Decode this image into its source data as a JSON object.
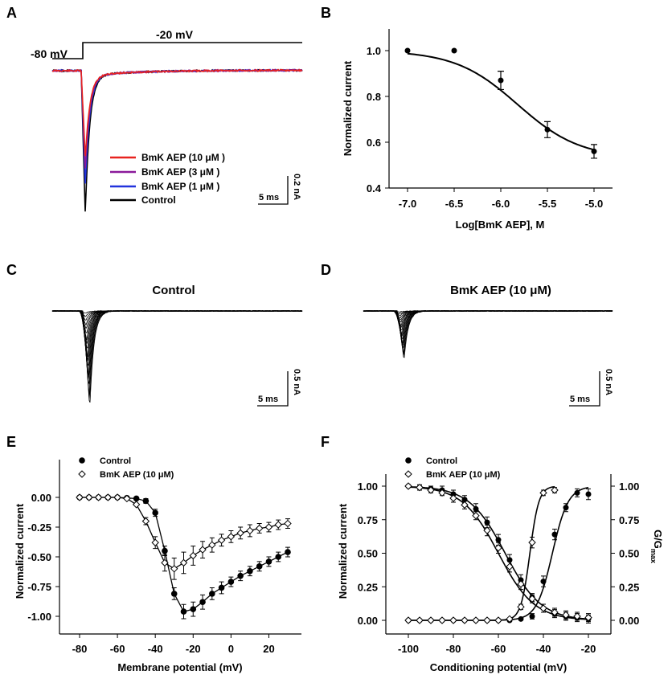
{
  "panels": [
    {
      "label": "A"
    },
    {
      "label": "B"
    },
    {
      "label": "C"
    },
    {
      "label": "D"
    },
    {
      "label": "E"
    },
    {
      "label": "F"
    }
  ],
  "colors": {
    "control": "#000000",
    "aep10": "#e8231f",
    "aep3": "#8b1a9a",
    "aep1": "#2233dd"
  },
  "chart_data": [
    {
      "panel": "A",
      "type": "line",
      "protocol": {
        "holding_label": "-80 mV",
        "step_label": "-20 mV"
      },
      "series": [
        {
          "name": "BmK AEP (10 μM )",
          "color": "#e8231f",
          "relative_peak": 0.6
        },
        {
          "name": "BmK AEP (3 μM )",
          "color": "#8b1a9a",
          "relative_peak": 0.69
        },
        {
          "name": "BmK AEP (1 μM )",
          "color": "#2233dd",
          "relative_peak": 0.8
        },
        {
          "name": "Control",
          "color": "#000000",
          "relative_peak": 1.0
        }
      ],
      "scalebar": {
        "time": "5 ms",
        "current": "0.2 nA"
      }
    },
    {
      "panel": "B",
      "type": "scatter",
      "xlabel": "Log[BmK AEP], M",
      "ylabel": "Normalized current",
      "xlim": [
        -7.0,
        -5.0
      ],
      "ylim": [
        0.4,
        1.0
      ],
      "xticks": [
        "-7.0",
        "-6.5",
        "-6.0",
        "-5.5",
        "-5.0"
      ],
      "yticks": [
        "0.4",
        "0.6",
        "0.8",
        "1.0"
      ],
      "x": [
        -7.0,
        -6.5,
        -6.0,
        -5.5,
        -5.0
      ],
      "y": [
        1.0,
        1.0,
        0.87,
        0.655,
        0.56
      ],
      "err": [
        0.0,
        0.0,
        0.04,
        0.035,
        0.03
      ],
      "fit": {
        "bottom": 0.53,
        "top": 1.0,
        "logIC50": -5.82,
        "hill": 1.3
      }
    },
    {
      "panel": "C",
      "type": "line",
      "title": "Control",
      "scalebar": {
        "time": "5 ms",
        "current": "0.5 nA"
      }
    },
    {
      "panel": "D",
      "type": "line",
      "title": "BmK AEP (10 μM)",
      "scalebar": {
        "time": "5 ms",
        "current": "0.5 nA"
      }
    },
    {
      "panel": "E",
      "type": "scatter",
      "xlabel": "Membrane potential (mV)",
      "ylabel": "Normalized current",
      "xlim": [
        -85,
        32
      ],
      "ylim": [
        -1.12,
        0.18
      ],
      "xticks": [
        "-80",
        "-60",
        "-40",
        "-20",
        "0",
        "20"
      ],
      "yticks": [
        "0.00",
        "-0.25",
        "-0.50",
        "-0.75",
        "-1.00"
      ],
      "x": [
        -80,
        -75,
        -70,
        -65,
        -60,
        -55,
        -50,
        -45,
        -40,
        -35,
        -30,
        -25,
        -20,
        -15,
        -10,
        -5,
        0,
        5,
        10,
        15,
        20,
        25,
        30
      ],
      "series": [
        {
          "name": "Control",
          "marker": "filled-circle",
          "values": [
            0,
            0,
            0,
            0,
            0,
            -0.005,
            -0.01,
            -0.03,
            -0.13,
            -0.45,
            -0.81,
            -0.96,
            -0.94,
            -0.88,
            -0.81,
            -0.76,
            -0.71,
            -0.66,
            -0.62,
            -0.58,
            -0.54,
            -0.5,
            -0.46
          ],
          "err": [
            0,
            0,
            0,
            0,
            0,
            0,
            0.01,
            0.02,
            0.03,
            0.04,
            0.05,
            0.06,
            0.06,
            0.06,
            0.05,
            0.05,
            0.04,
            0.04,
            0.04,
            0.04,
            0.04,
            0.04,
            0.04
          ]
        },
        {
          "name": "BmK AEP (10 μM)",
          "marker": "open-diamond",
          "values": [
            0,
            0,
            0,
            0,
            0,
            -0.01,
            -0.06,
            -0.2,
            -0.38,
            -0.55,
            -0.6,
            -0.55,
            -0.49,
            -0.44,
            -0.4,
            -0.36,
            -0.33,
            -0.3,
            -0.28,
            -0.26,
            -0.25,
            -0.23,
            -0.22
          ],
          "err": [
            0,
            0,
            0,
            0,
            0,
            0.005,
            0.01,
            0.03,
            0.05,
            0.07,
            0.09,
            0.09,
            0.08,
            0.07,
            0.06,
            0.05,
            0.05,
            0.05,
            0.05,
            0.04,
            0.04,
            0.04,
            0.04
          ]
        }
      ]
    },
    {
      "panel": "F",
      "type": "scatter",
      "xlabel": "Conditioning potential (mV)",
      "ylabel": "Normalized current",
      "ylabel_right": "G/G",
      "ylabel_right_sub": "max",
      "xlim": [
        -105,
        -18
      ],
      "ylim": [
        -0.06,
        1.08
      ],
      "xticks": [
        "-100",
        "-80",
        "-60",
        "-40",
        "-20"
      ],
      "yticks": [
        "0.00",
        "0.25",
        "0.50",
        "0.75",
        "1.00"
      ],
      "series": [
        {
          "name": "Control",
          "marker": "filled-circle",
          "kind": "inactivation",
          "x": [
            -100,
            -95,
            -90,
            -85,
            -80,
            -75,
            -70,
            -65,
            -60,
            -55,
            -50,
            -45,
            -40,
            -35,
            -30,
            -25,
            -20
          ],
          "values": [
            1.0,
            0.99,
            0.98,
            0.97,
            0.94,
            0.9,
            0.83,
            0.73,
            0.6,
            0.45,
            0.3,
            0.17,
            0.09,
            0.05,
            0.03,
            0.02,
            0.01
          ],
          "err": [
            0.01,
            0.02,
            0.02,
            0.03,
            0.03,
            0.03,
            0.04,
            0.04,
            0.04,
            0.04,
            0.04,
            0.03,
            0.03,
            0.03,
            0.03,
            0.03,
            0.03
          ],
          "fit": {
            "v50": -57,
            "k": 8
          }
        },
        {
          "name": "BmK AEP (10 μM)",
          "marker": "open-diamond",
          "kind": "inactivation",
          "x": [
            -100,
            -95,
            -90,
            -85,
            -80,
            -75,
            -70,
            -65,
            -60,
            -55,
            -50,
            -45,
            -40,
            -35,
            -30,
            -25,
            -20
          ],
          "values": [
            1.0,
            0.99,
            0.97,
            0.95,
            0.91,
            0.86,
            0.78,
            0.67,
            0.54,
            0.4,
            0.27,
            0.16,
            0.09,
            0.06,
            0.04,
            0.03,
            0.02
          ],
          "err": [
            0.01,
            0.02,
            0.02,
            0.02,
            0.03,
            0.03,
            0.03,
            0.04,
            0.04,
            0.04,
            0.04,
            0.03,
            0.03,
            0.03,
            0.03,
            0.03,
            0.03
          ],
          "fit": {
            "v50": -60,
            "k": 8
          }
        },
        {
          "name": "Control",
          "marker": "filled-circle",
          "kind": "activation",
          "x": [
            -100,
            -95,
            -90,
            -85,
            -80,
            -75,
            -70,
            -65,
            -60,
            -55,
            -50,
            -45,
            -40,
            -35,
            -30,
            -25,
            -20
          ],
          "values": [
            0,
            0,
            0,
            0,
            0,
            0,
            0,
            0,
            0,
            0,
            0.01,
            0.03,
            0.29,
            0.64,
            0.84,
            0.95,
            0.94
          ],
          "err": [
            0,
            0,
            0,
            0,
            0,
            0,
            0,
            0,
            0,
            0,
            0.01,
            0.02,
            0.04,
            0.04,
            0.03,
            0.03,
            0.04
          ],
          "fit": {
            "v50": -36,
            "k": 3.5
          }
        },
        {
          "name": "BmK AEP (10 μM)",
          "marker": "open-diamond",
          "kind": "activation",
          "x": [
            -100,
            -95,
            -90,
            -85,
            -80,
            -75,
            -70,
            -65,
            -60,
            -55,
            -50,
            -45,
            -40,
            -35
          ],
          "values": [
            0,
            0,
            0,
            0,
            0,
            0,
            0,
            0,
            0,
            0.01,
            0.1,
            0.58,
            0.95,
            0.97
          ],
          "err": [
            0,
            0,
            0,
            0,
            0,
            0,
            0,
            0,
            0,
            0,
            0.02,
            0.04,
            0.02,
            0.02
          ],
          "fit": {
            "v50": -46,
            "k": 2
          }
        }
      ]
    }
  ]
}
